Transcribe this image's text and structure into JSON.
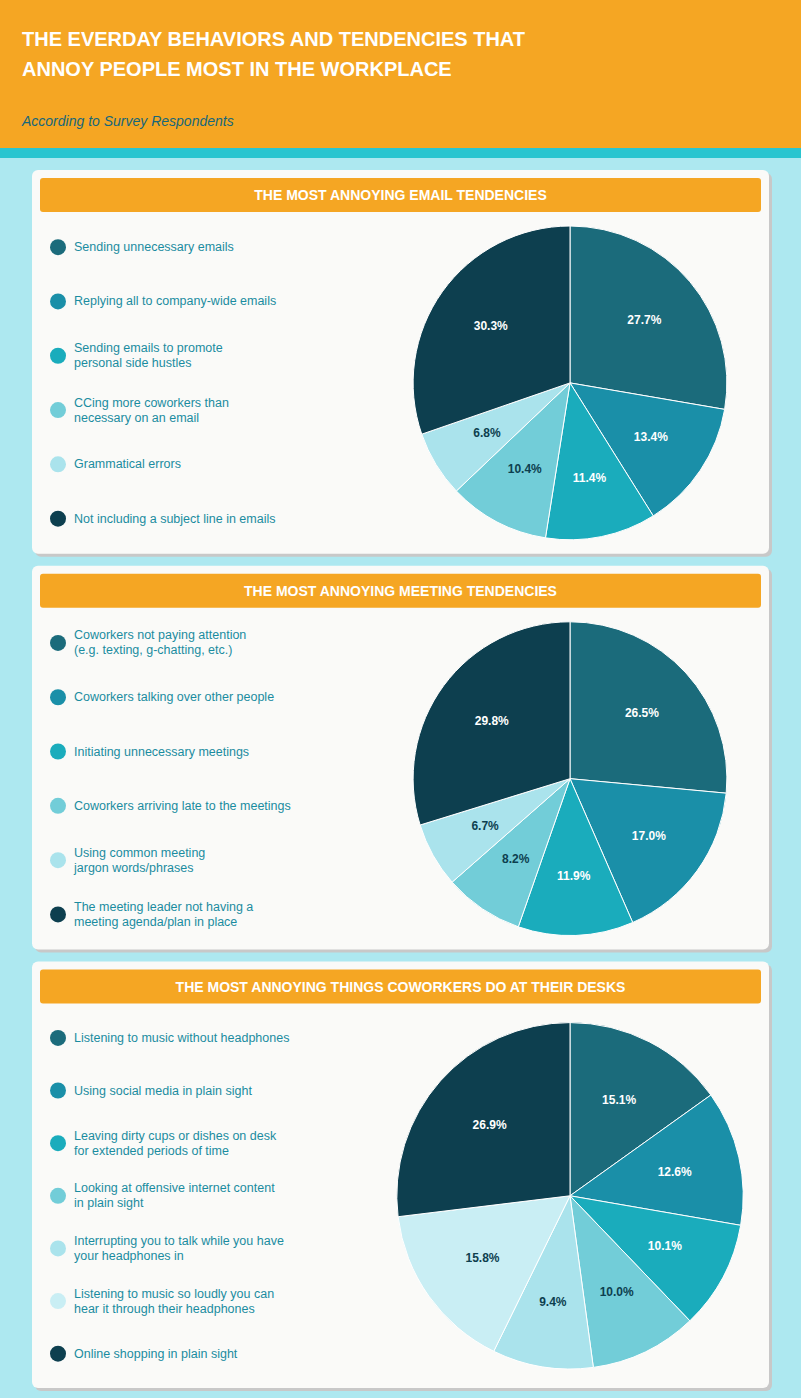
{
  "title": "THE EVERDAY BEHAVIORS AND TENDENCIES THAT\nANNOY PEOPLE MOST IN THE WORKPLACE",
  "subtitle": "According to Survey Respondents",
  "chart_data": [
    {
      "type": "pie",
      "title": "THE MOST ANNOYING EMAIL TENDENCIES",
      "categories": [
        "Sending unnecessary emails",
        "Replying all to company-wide emails",
        "Sending emails to promote\npersonal side hustles",
        "CCing more coworkers than\nnecessary on an email",
        "Grammatical errors",
        "Not including a subject line in emails"
      ],
      "values": [
        27.7,
        13.4,
        11.4,
        10.4,
        6.8,
        30.3
      ],
      "value_labels": [
        "27.7%",
        "13.4%",
        "11.4%",
        "10.4%",
        "6.8%",
        "30.3%"
      ],
      "colors": [
        "#1B6B7B",
        "#1A8FA8",
        "#1AACBC",
        "#72CDD8",
        "#AAE3EC",
        "#0D3F4F"
      ],
      "data_labels": true
    },
    {
      "type": "pie",
      "title": "THE MOST ANNOYING MEETING TENDENCIES",
      "categories": [
        "Coworkers not paying attention\n(e.g. texting, g-chatting, etc.)",
        "Coworkers talking over other people",
        "Initiating unnecessary meetings",
        "Coworkers arriving late to the meetings",
        "Using common meeting\njargon words/phrases",
        "The meeting leader not having a\nmeeting agenda/plan in place"
      ],
      "values": [
        26.5,
        17.0,
        11.9,
        8.2,
        6.7,
        29.8
      ],
      "value_labels": [
        "26.5%",
        "17.0%",
        "11.9%",
        "8.2%",
        "6.7%",
        "29.8%"
      ],
      "colors": [
        "#1B6B7B",
        "#1A8FA8",
        "#1AACBC",
        "#72CDD8",
        "#AAE3EC",
        "#0D3F4F"
      ],
      "data_labels": true
    },
    {
      "type": "pie",
      "title": "THE MOST ANNOYING THINGS COWORKERS DO AT THEIR DESKS",
      "categories": [
        "Listening to music without headphones",
        "Using social media in plain sight",
        "Leaving dirty cups or dishes on desk\nfor extended periods of time",
        "Looking at offensive internet content\nin plain sight",
        "Interrupting you to talk while you have\nyour headphones in",
        "Listening to music so loudly you can\nhear it through their headphones",
        "Online shopping in plain sight"
      ],
      "values": [
        15.1,
        12.6,
        10.1,
        10.0,
        9.4,
        15.8,
        26.9
      ],
      "value_labels": [
        "15.1%",
        "12.6%",
        "10.1%",
        "10.0%",
        "9.4%",
        "15.8%",
        "26.9%"
      ],
      "colors": [
        "#1B6B7B",
        "#1A8FA8",
        "#1AACBC",
        "#72CDD8",
        "#AAE3EC",
        "#C9EEF4",
        "#0D3F4F"
      ],
      "data_labels": true
    }
  ]
}
